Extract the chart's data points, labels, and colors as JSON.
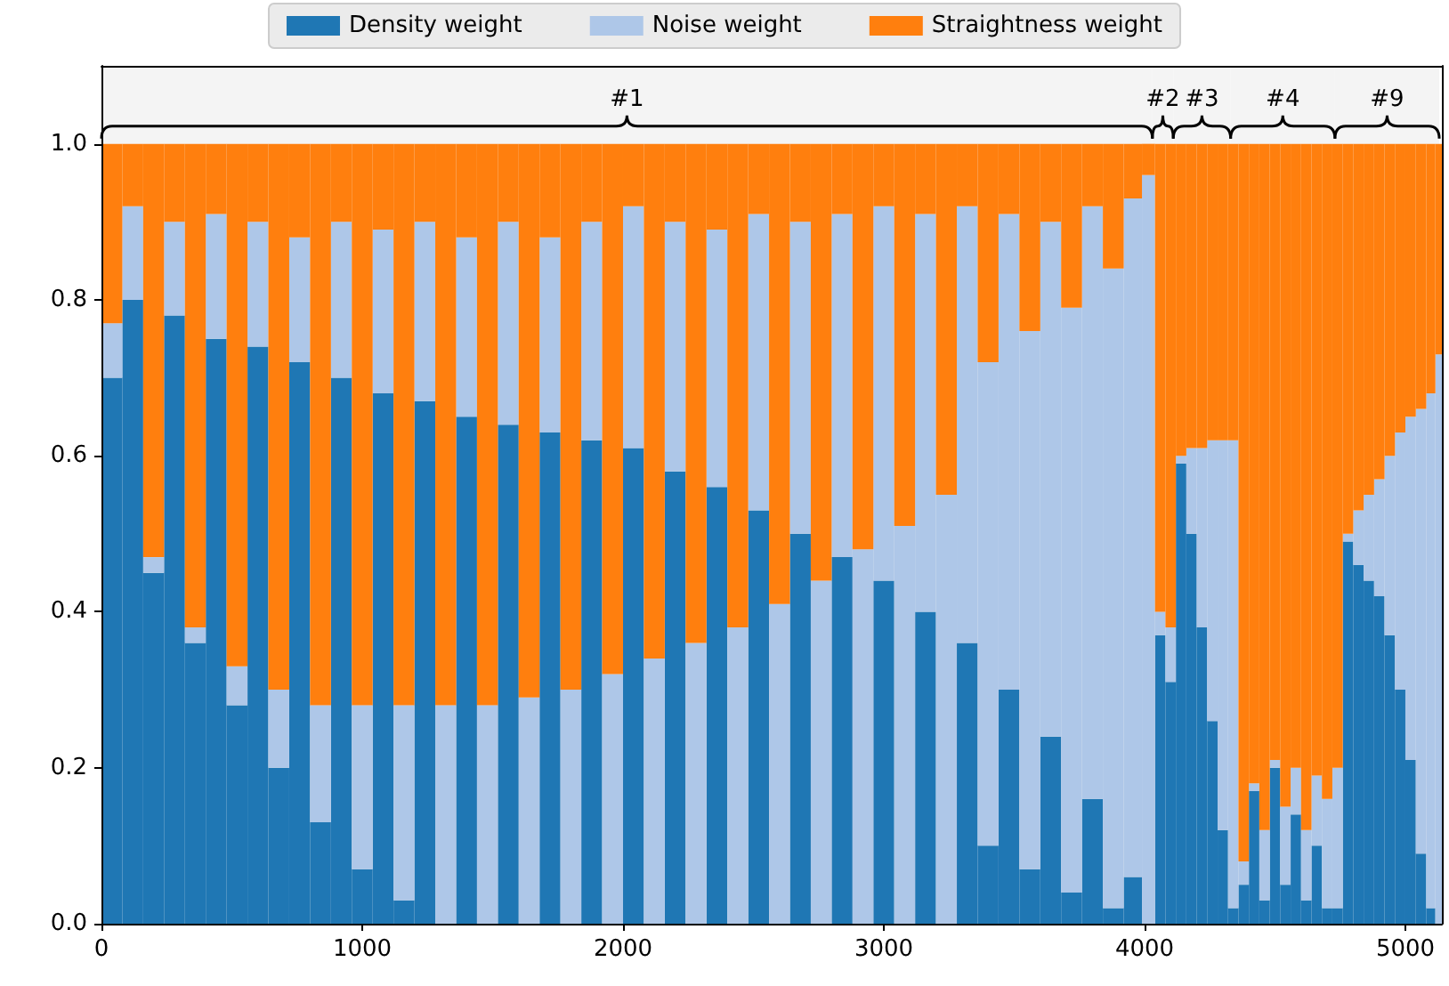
{
  "chart_data": {
    "type": "bar",
    "stacked": true,
    "x": [
      40,
      120,
      200,
      280,
      360,
      440,
      520,
      600,
      680,
      760,
      840,
      920,
      1000,
      1080,
      1160,
      1240,
      1320,
      1400,
      1480,
      1560,
      1640,
      1720,
      1800,
      1880,
      1960,
      2040,
      2120,
      2200,
      2280,
      2360,
      2440,
      2520,
      2600,
      2680,
      2760,
      2840,
      2920,
      3000,
      3080,
      3160,
      3240,
      3320,
      3400,
      3480,
      3560,
      3640,
      3720,
      3800,
      3880,
      3960,
      4020,
      4060,
      4100,
      4140,
      4180,
      4220,
      4260,
      4300,
      4340,
      4380,
      4420,
      4460,
      4500,
      4540,
      4580,
      4620,
      4660,
      4700,
      4740,
      4780,
      4820,
      4860,
      4900,
      4940,
      4980,
      5020,
      5060,
      5100,
      5130
    ],
    "series": [
      {
        "name": "Density weight",
        "color": "#1f77b4",
        "values": [
          0.7,
          0.8,
          0.45,
          0.78,
          0.36,
          0.75,
          0.28,
          0.74,
          0.2,
          0.72,
          0.13,
          0.7,
          0.07,
          0.68,
          0.03,
          0.67,
          0,
          0.65,
          0,
          0.64,
          0,
          0.63,
          0,
          0.62,
          0,
          0.61,
          0,
          0.58,
          0,
          0.56,
          0,
          0.53,
          0,
          0.5,
          0,
          0.47,
          0,
          0.44,
          0,
          0.4,
          0,
          0.36,
          0.1,
          0.3,
          0.07,
          0.24,
          0.04,
          0.16,
          0.02,
          0.06,
          0,
          0.37,
          0.31,
          0.59,
          0.5,
          0.38,
          0.26,
          0.12,
          0.02,
          0.05,
          0.17,
          0.03,
          0.2,
          0.05,
          0.14,
          0.03,
          0.1,
          0.02,
          0.02,
          0.49,
          0.46,
          0.44,
          0.42,
          0.37,
          0.3,
          0.21,
          0.09,
          0.02,
          0
        ]
      },
      {
        "name": "Noise weight",
        "color": "#aec7e8",
        "values": [
          0.07,
          0.12,
          0.02,
          0.12,
          0.02,
          0.16,
          0.05,
          0.16,
          0.1,
          0.16,
          0.15,
          0.2,
          0.21,
          0.21,
          0.25,
          0.23,
          0.28,
          0.23,
          0.28,
          0.26,
          0.29,
          0.25,
          0.3,
          0.28,
          0.32,
          0.31,
          0.34,
          0.32,
          0.36,
          0.33,
          0.38,
          0.38,
          0.41,
          0.4,
          0.44,
          0.44,
          0.48,
          0.48,
          0.51,
          0.51,
          0.55,
          0.56,
          0.62,
          0.61,
          0.69,
          0.66,
          0.75,
          0.76,
          0.82,
          0.87,
          0.96,
          0.03,
          0.07,
          0.01,
          0.11,
          0.23,
          0.36,
          0.5,
          0.6,
          0.03,
          0.01,
          0.09,
          0.01,
          0.1,
          0.06,
          0.09,
          0.09,
          0.14,
          0.18,
          0.01,
          0.07,
          0.11,
          0.15,
          0.23,
          0.33,
          0.44,
          0.57,
          0.66,
          0.73
        ]
      },
      {
        "name": "Straightness weight",
        "color": "#ff7f0e",
        "values": [
          0.23,
          0.08,
          0.53,
          0.1,
          0.62,
          0.09,
          0.67,
          0.1,
          0.7,
          0.12,
          0.72,
          0.1,
          0.72,
          0.11,
          0.72,
          0.1,
          0.72,
          0.12,
          0.72,
          0.1,
          0.71,
          0.12,
          0.7,
          0.1,
          0.68,
          0.08,
          0.66,
          0.1,
          0.64,
          0.11,
          0.62,
          0.09,
          0.59,
          0.1,
          0.56,
          0.09,
          0.52,
          0.08,
          0.49,
          0.09,
          0.45,
          0.08,
          0.28,
          0.09,
          0.24,
          0.1,
          0.21,
          0.08,
          0.16,
          0.07,
          0.04,
          0.6,
          0.62,
          0.4,
          0.39,
          0.39,
          0.38,
          0.38,
          0.38,
          0.92,
          0.82,
          0.88,
          0.79,
          0.85,
          0.8,
          0.88,
          0.81,
          0.84,
          0.8,
          0.5,
          0.47,
          0.45,
          0.43,
          0.4,
          0.37,
          0.35,
          0.34,
          0.32,
          0.27
        ]
      }
    ],
    "xlim": [
      0,
      5140
    ],
    "xticks": [
      0,
      1000,
      2000,
      3000,
      4000,
      5000
    ],
    "ylim": [
      0,
      1.1
    ],
    "yticks": [
      {
        "value": 0,
        "label": "0.0"
      },
      {
        "value": 0.2,
        "label": "0.2"
      },
      {
        "value": 0.4,
        "label": "0.4"
      },
      {
        "value": 0.6,
        "label": "0.6"
      },
      {
        "value": 0.8,
        "label": "0.8"
      },
      {
        "value": 1.0,
        "label": "1.0"
      }
    ],
    "bands": [
      {
        "axis": "x",
        "from": 0,
        "to": 4030,
        "label": "#1",
        "color": "#f4f4f4"
      },
      {
        "axis": "x",
        "from": 4030,
        "to": 4110,
        "label": "#2",
        "color": "#f4f4f4"
      },
      {
        "axis": "x",
        "from": 4110,
        "to": 4330,
        "label": "#3",
        "color": "#f4f4f4"
      },
      {
        "axis": "x",
        "from": 4330,
        "to": 4730,
        "label": "#4",
        "color": "#f4f4f4"
      },
      {
        "axis": "x",
        "from": 4730,
        "to": 5130,
        "label": "#9",
        "color": "#f4f4f4"
      }
    ],
    "legend": "top"
  }
}
